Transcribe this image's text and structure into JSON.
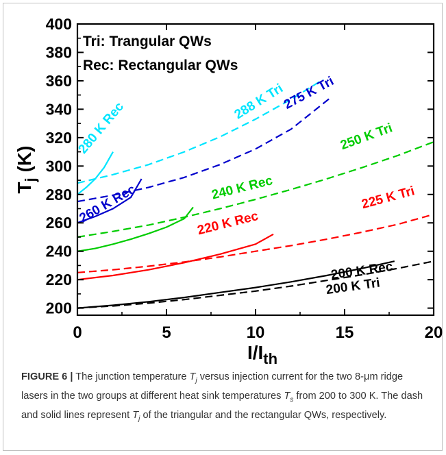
{
  "chart_data": {
    "type": "line",
    "xlabel": "I/I",
    "xlabel_sub": "th",
    "ylabel": "T",
    "ylabel_sub": "j",
    "ylabel_unit": " (K)",
    "xlim": [
      0,
      20
    ],
    "ylim": [
      195,
      400
    ],
    "xticks": [
      "0",
      "5",
      "10",
      "15",
      "20"
    ],
    "yticks": [
      "200",
      "220",
      "240",
      "260",
      "280",
      "300",
      "320",
      "340",
      "360",
      "380",
      "400"
    ],
    "grid": false,
    "legend_lines": [
      "Tri: Trangular QWs",
      "Rec: Rectangular QWs"
    ],
    "series": [
      {
        "name": "200 K Rec",
        "style": "solid",
        "color": "#000000",
        "x": [
          0,
          2,
          4,
          6,
          8,
          10,
          12,
          14,
          16,
          17.8
        ],
        "y": [
          200,
          202,
          204.5,
          207.5,
          211,
          214.5,
          218.5,
          223,
          228,
          233
        ]
      },
      {
        "name": "200 K Tri",
        "style": "dashed",
        "color": "#000000",
        "x": [
          0,
          2,
          4,
          6,
          8,
          10,
          12,
          14,
          16,
          18,
          20
        ],
        "y": [
          200,
          201.5,
          203.5,
          206,
          209,
          212,
          215.5,
          219.5,
          223.5,
          228,
          233
        ]
      },
      {
        "name": "220 K Rec",
        "style": "solid",
        "color": "#ff0000",
        "x": [
          0,
          2,
          4,
          6,
          8,
          10,
          11
        ],
        "y": [
          220,
          223,
          227,
          232,
          238,
          245,
          252
        ]
      },
      {
        "name": "225 K Tri",
        "style": "dashed",
        "color": "#ff0000",
        "x": [
          0,
          2,
          4,
          6,
          8,
          10,
          12,
          14,
          16,
          18,
          20
        ],
        "y": [
          225,
          227,
          229.5,
          232.5,
          236,
          240,
          244,
          248.5,
          253.5,
          259,
          266
        ]
      },
      {
        "name": "240 K Rec",
        "style": "solid",
        "color": "#00cc00",
        "x": [
          0,
          1,
          2,
          3,
          4,
          5,
          6,
          6.5
        ],
        "y": [
          240,
          242,
          245,
          248.5,
          252.5,
          257,
          263,
          271
        ]
      },
      {
        "name": "250 K Tri",
        "style": "dashed",
        "color": "#00cc00",
        "x": [
          0,
          2,
          4,
          6,
          8,
          10,
          12,
          14,
          16,
          18,
          20
        ],
        "y": [
          250,
          254,
          258.5,
          264,
          270,
          276.5,
          283.5,
          291,
          299,
          307.5,
          317
        ]
      },
      {
        "name": "260 K Rec",
        "style": "solid",
        "color": "#0000cc",
        "x": [
          0,
          1,
          2,
          3,
          3.6
        ],
        "y": [
          260,
          264.5,
          270,
          278,
          291
        ]
      },
      {
        "name": "275 K Tri",
        "style": "dashed",
        "color": "#0000cc",
        "x": [
          0,
          2,
          4,
          6,
          8,
          10,
          12,
          14.2
        ],
        "y": [
          275,
          279.5,
          285,
          292,
          301,
          312,
          326,
          348
        ]
      },
      {
        "name": "280 K Rec",
        "style": "solid",
        "color": "#00e5ff",
        "x": [
          0,
          0.5,
          1,
          1.5,
          2
        ],
        "y": [
          280,
          285,
          291,
          299,
          310
        ]
      },
      {
        "name": "288 K Tri",
        "style": "dashed",
        "color": "#00e5ff",
        "x": [
          0,
          2,
          4,
          6,
          8,
          10,
          12,
          13.8
        ],
        "y": [
          288,
          294,
          301,
          310,
          320.5,
          333,
          347,
          361
        ]
      }
    ],
    "annotations": [
      {
        "text": "200 K Rec",
        "x": 16.0,
        "y": 223.5,
        "angle": -8,
        "color": "#000000"
      },
      {
        "text": "200 K Tri",
        "x": 15.5,
        "y": 212.5,
        "angle": -8,
        "color": "#000000"
      },
      {
        "text": "220 K Rec",
        "x": 8.5,
        "y": 257,
        "angle": -14,
        "color": "#ff0000"
      },
      {
        "text": "225 K Tri",
        "x": 17.5,
        "y": 275,
        "angle": -15,
        "color": "#ff0000"
      },
      {
        "text": "240 K Rec",
        "x": 9.3,
        "y": 282,
        "angle": -14,
        "color": "#00cc00"
      },
      {
        "text": "250 K Tri",
        "x": 16.3,
        "y": 318,
        "angle": -20,
        "color": "#00cc00"
      },
      {
        "text": "260 K Rec",
        "x": 1.8,
        "y": 271,
        "angle": -30,
        "color": "#0000cc"
      },
      {
        "text": "275 K Tri",
        "x": 13.1,
        "y": 349,
        "angle": -28,
        "color": "#0000cc"
      },
      {
        "text": "280 K Rec",
        "x": 1.5,
        "y": 325,
        "angle": -50,
        "color": "#00e5ff"
      },
      {
        "text": "288 K Tri",
        "x": 10.3,
        "y": 343,
        "angle": -32,
        "color": "#00e5ff"
      }
    ]
  },
  "caption": {
    "label": "FIGURE 6 |",
    "t1": " The junction temperature ",
    "t2": " versus injection current for the two 8-μm ridge lasers in the two groups at different heat sink temperatures ",
    "t3": " from 200 to 300 K. The dash and solid lines represent ",
    "t4": " of the triangular and the rectangular QWs, respectively.",
    "sym_tj": "T",
    "sym_tj_sub": "j",
    "sym_ts": "T",
    "sym_ts_sub": "s"
  }
}
